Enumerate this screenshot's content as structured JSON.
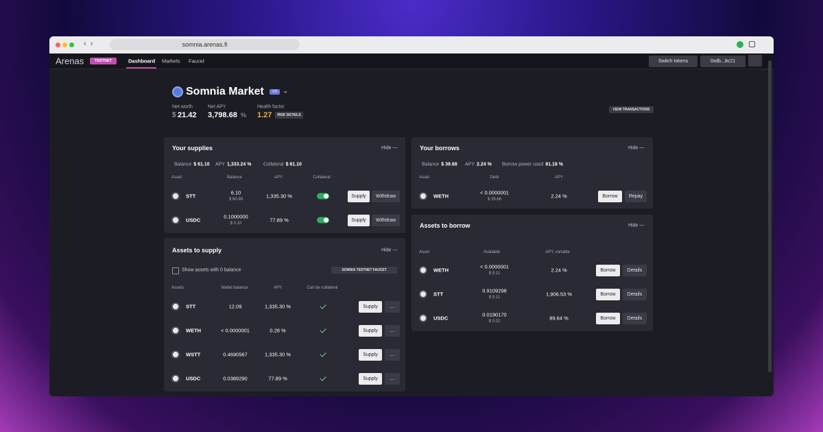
{
  "browser": {
    "url": "somnia.arenas.fi"
  },
  "header": {
    "logo": "Arenas",
    "badge": "TESTNET",
    "tabs": [
      "Dashboard",
      "Markets",
      "Faucet"
    ],
    "switch_tokens": "Switch tokens",
    "wallet": "0xdb...8c21"
  },
  "market": {
    "title": "Somnia Market",
    "version": "V3",
    "stats": [
      {
        "label": "Net worth",
        "prefix": "$",
        "value": "21.42"
      },
      {
        "label": "Net APY",
        "value": "3,798.68",
        "suffix": "%"
      },
      {
        "label": "Health factor",
        "value": "1.27",
        "button": "RISK DETAILS"
      }
    ],
    "view_transactions": "VIEW TRANSACTIONS"
  },
  "supplies": {
    "title": "Your supplies",
    "hide": "Hide —",
    "summary": [
      {
        "label": "Balance",
        "value": "$ 61.10"
      },
      {
        "label": "APY",
        "value": "1,333.24 %"
      },
      {
        "label": "Collateral",
        "value": "$ 61.10"
      }
    ],
    "columns": [
      "Asset",
      "Balance",
      "APY",
      "Collateral"
    ],
    "rows": [
      {
        "asset": "STT",
        "amount": "6.10",
        "usd": "$ 60.99",
        "apy": "1,335.30 %",
        "collateral": true
      },
      {
        "asset": "USDC",
        "amount": "0.1000000",
        "usd": "$ 0.10",
        "apy": "77.89 %",
        "collateral": true
      }
    ],
    "actions": [
      "Supply",
      "Withdraw"
    ]
  },
  "assets_to_supply": {
    "title": "Assets to supply",
    "hide": "Hide —",
    "show_zero": "Show assets with 0 balance",
    "faucet": "SOMNIA TESTNET FAUCET",
    "columns": [
      "Assets",
      "Wallet balance",
      "APY",
      "Can be collateral"
    ],
    "rows": [
      {
        "asset": "STT",
        "balance": "12.09",
        "apy": "1,335.30 %",
        "can_be_collateral": true
      },
      {
        "asset": "WETH",
        "balance": "< 0.0000001",
        "apy": "0.28 %",
        "can_be_collateral": true
      },
      {
        "asset": "WSTT",
        "balance": "0.4690567",
        "apy": "1,335.30 %",
        "can_be_collateral": true
      },
      {
        "asset": "USDC",
        "balance": "0.0389290",
        "apy": "77.89 %",
        "can_be_collateral": true
      }
    ],
    "actions": [
      "Supply",
      "..."
    ]
  },
  "borrows": {
    "title": "Your borrows",
    "hide": "Hide —",
    "summary": [
      {
        "label": "Balance",
        "value": "$ 39.68"
      },
      {
        "label": "APY",
        "value": "2.24 %"
      },
      {
        "label": "Borrow power used",
        "value": "81.18 %"
      }
    ],
    "columns": [
      "Asset",
      "Debt",
      "APY"
    ],
    "rows": [
      {
        "asset": "WETH",
        "amount": "< 0.0000001",
        "usd": "$ 39.68",
        "apy": "2.24 %"
      }
    ],
    "actions": [
      "Borrow",
      "Repay"
    ]
  },
  "assets_to_borrow": {
    "title": "Assets to borrow",
    "hide": "Hide —",
    "columns": [
      "Asset",
      "Available",
      "APY, variable"
    ],
    "rows": [
      {
        "asset": "WETH",
        "amount": "< 0.0000001",
        "usd": "$ 9.11",
        "apy": "2.24 %"
      },
      {
        "asset": "STT",
        "amount": "0.9109298",
        "usd": "$ 9.11",
        "apy": "1,906.53 %"
      },
      {
        "asset": "USDC",
        "amount": "0.0190170",
        "usd": "$ 0.02",
        "apy": "89.64 %"
      }
    ],
    "actions": [
      "Borrow",
      "Details"
    ]
  }
}
